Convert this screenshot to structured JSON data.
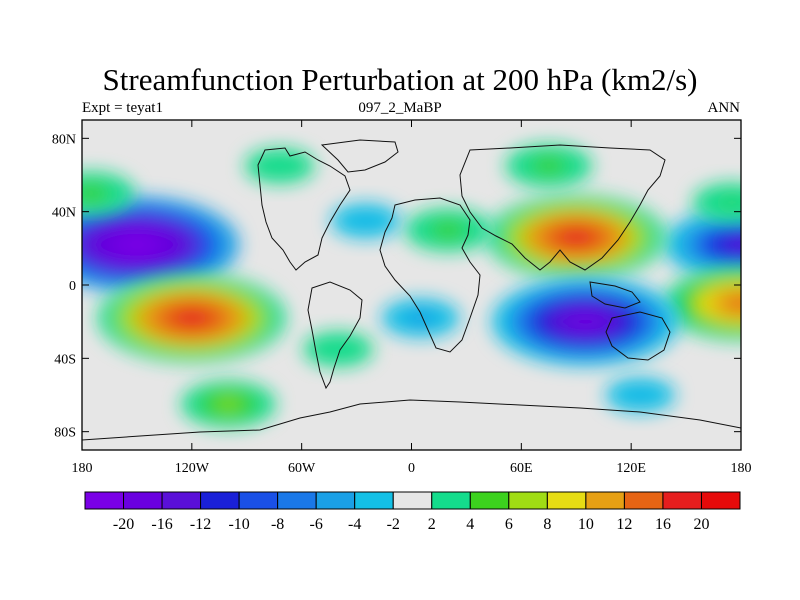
{
  "title": "Streamfunction Perturbation at 200 hPa (km2/s)",
  "left_string": "Expt = teyat1",
  "center_string": "097_2_MaBP",
  "right_string": "ANN",
  "map": {
    "projection": "cylindrical-equidistant",
    "lon_range": [
      -180,
      180
    ],
    "lat_range": [
      -90,
      90
    ],
    "background_color": "#e6e6e6",
    "y_ticks": [
      {
        "lat": 80,
        "label": "80N"
      },
      {
        "lat": 40,
        "label": "40N"
      },
      {
        "lat": 0,
        "label": "0"
      },
      {
        "lat": -40,
        "label": "40S"
      },
      {
        "lat": -80,
        "label": "80S"
      }
    ],
    "x_ticks": [
      {
        "lon": -180,
        "label": "180"
      },
      {
        "lon": -120,
        "label": "120W"
      },
      {
        "lon": -60,
        "label": "60W"
      },
      {
        "lon": 0,
        "label": "0"
      },
      {
        "lon": 60,
        "label": "60E"
      },
      {
        "lon": 120,
        "label": "120E"
      },
      {
        "lon": 180,
        "label": "180"
      }
    ]
  },
  "colorbar": {
    "levels": [
      "-20",
      "-16",
      "-12",
      "-10",
      "-8",
      "-6",
      "-4",
      "-2",
      "2",
      "4",
      "6",
      "8",
      "10",
      "12",
      "16",
      "20"
    ],
    "colors": [
      "#7a00e6",
      "#6a00e0",
      "#5a10d8",
      "#1a20d8",
      "#1a50e6",
      "#1a78e8",
      "#1aa0e6",
      "#14c0e6",
      "#e6e6e6",
      "#14dc8c",
      "#3cd21e",
      "#a0dc14",
      "#e6dc14",
      "#e6a014",
      "#e66414",
      "#e61e1e",
      "#e60a0a"
    ]
  },
  "chart_data": {
    "type": "heatmap",
    "title": "Streamfunction Perturbation at 200 hPa (km2/s)",
    "left_string": "Expt = teyat1",
    "center_string": "097_2_MaBP",
    "right_string": "ANN",
    "xlim": [
      -180,
      180
    ],
    "ylim": [
      -90,
      90
    ],
    "centers": [
      {
        "lon": -150,
        "lat": 22,
        "value": -20
      },
      {
        "lon": 180,
        "lat": 22,
        "value": -14
      },
      {
        "lon": -120,
        "lat": -18,
        "value": 18
      },
      {
        "lon": 180,
        "lat": -10,
        "value": 14
      },
      {
        "lon": 90,
        "lat": 26,
        "value": 17
      },
      {
        "lon": 20,
        "lat": 30,
        "value": 6
      },
      {
        "lon": 95,
        "lat": -20,
        "value": -18
      },
      {
        "lon": 5,
        "lat": -18,
        "value": -5
      },
      {
        "lon": -25,
        "lat": 35,
        "value": -4
      },
      {
        "lon": -100,
        "lat": -65,
        "value": 7
      },
      {
        "lon": 125,
        "lat": -60,
        "value": -4
      },
      {
        "lon": 175,
        "lat": 45,
        "value": 5
      },
      {
        "lon": -175,
        "lat": 50,
        "value": 6
      },
      {
        "lon": 75,
        "lat": 65,
        "value": 6
      },
      {
        "lon": -72,
        "lat": 65,
        "value": 4
      },
      {
        "lon": -40,
        "lat": -35,
        "value": 4
      }
    ]
  }
}
